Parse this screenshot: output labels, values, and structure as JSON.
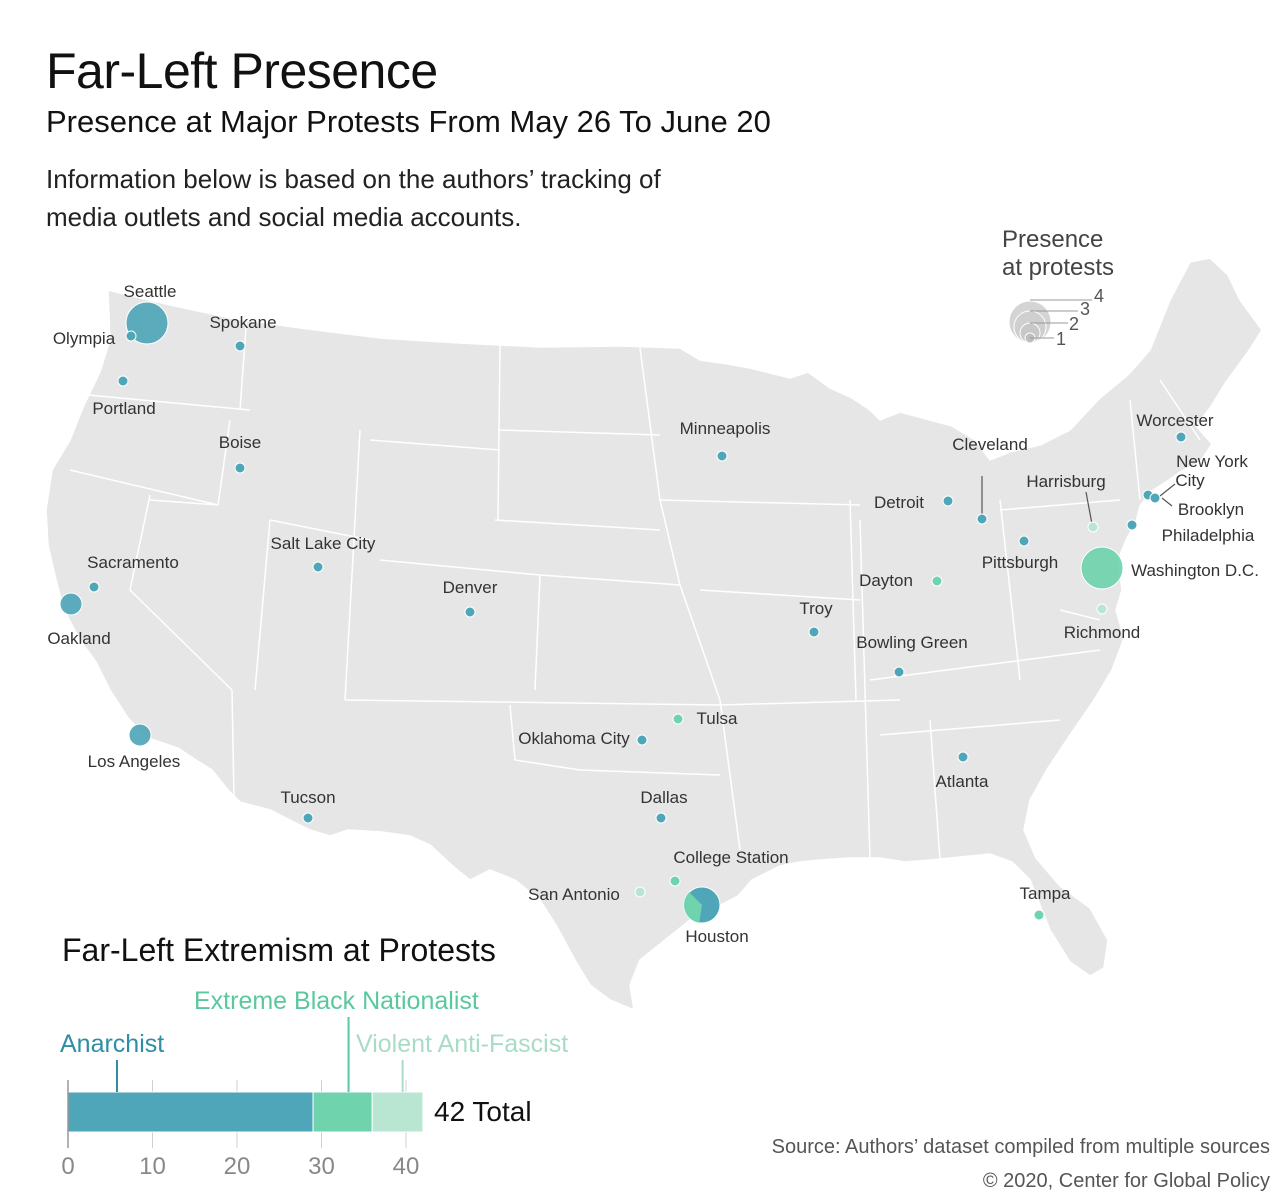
{
  "header": {
    "title": "Far-Left Presence",
    "subtitle": "Presence at Major Protests From May 26 To June 20",
    "intro_line1": "Information below is based on the authors’ tracking of",
    "intro_line2": "media outlets and social media accounts."
  },
  "legend": {
    "title_line1": "Presence",
    "title_line2": "at protests",
    "sizes": [
      "1",
      "2",
      "3",
      "4"
    ]
  },
  "colors": {
    "anarchist": "#4fa6b8",
    "black_nationalist": "#6fd3ad",
    "anti_fascist": "#b8e6d2",
    "land": "#e6e6e6",
    "border": "#ffffff"
  },
  "cities": [
    {
      "name": "Seattle",
      "type": "anarchist",
      "count": 4
    },
    {
      "name": "Olympia",
      "type": "anarchist",
      "count": 1
    },
    {
      "name": "Spokane",
      "type": "anarchist",
      "count": 1
    },
    {
      "name": "Portland",
      "type": "anarchist",
      "count": 1
    },
    {
      "name": "Boise",
      "type": "anarchist",
      "count": 1
    },
    {
      "name": "Sacramento",
      "type": "anarchist",
      "count": 1
    },
    {
      "name": "Oakland",
      "type": "anarchist",
      "count": 2
    },
    {
      "name": "Los Angeles",
      "type": "anarchist",
      "count": 2
    },
    {
      "name": "Salt Lake City",
      "type": "anarchist",
      "count": 1
    },
    {
      "name": "Denver",
      "type": "anarchist",
      "count": 1
    },
    {
      "name": "Tucson",
      "type": "anarchist",
      "count": 1
    },
    {
      "name": "Minneapolis",
      "type": "anarchist",
      "count": 1
    },
    {
      "name": "Oklahoma City",
      "type": "anarchist",
      "count": 1
    },
    {
      "name": "Tulsa",
      "type": "black_nationalist",
      "count": 1
    },
    {
      "name": "Dallas",
      "type": "anarchist",
      "count": 1
    },
    {
      "name": "College Station",
      "type": "black_nationalist",
      "count": 1
    },
    {
      "name": "San Antonio",
      "type": "anti_fascist",
      "count": 1
    },
    {
      "name": "Houston",
      "type": "mixed",
      "count": 3
    },
    {
      "name": "Troy",
      "type": "anarchist",
      "count": 1
    },
    {
      "name": "Bowling Green",
      "type": "anarchist",
      "count": 1
    },
    {
      "name": "Dayton",
      "type": "black_nationalist",
      "count": 1
    },
    {
      "name": "Detroit",
      "type": "anarchist",
      "count": 1
    },
    {
      "name": "Cleveland",
      "type": "anarchist",
      "count": 1
    },
    {
      "name": "Pittsburgh",
      "type": "anarchist",
      "count": 1
    },
    {
      "name": "Harrisburg",
      "type": "anti_fascist",
      "count": 1
    },
    {
      "name": "Washington D.C.",
      "type": "black_nationalist",
      "count": 4
    },
    {
      "name": "Richmond",
      "type": "anti_fascist",
      "count": 1
    },
    {
      "name": "Philadelphia",
      "type": "anarchist",
      "count": 1
    },
    {
      "name": "New York City",
      "type": "anarchist",
      "count": 1
    },
    {
      "name": "Brooklyn",
      "type": "anarchist",
      "count": 1
    },
    {
      "name": "Worcester",
      "type": "anarchist",
      "count": 1
    },
    {
      "name": "Atlanta",
      "type": "anarchist",
      "count": 1
    },
    {
      "name": "Tampa",
      "type": "black_nationalist",
      "count": 1
    }
  ],
  "chart_data": {
    "type": "bar",
    "title": "Far-Left Extremism at Protests",
    "orientation": "horizontal-stacked",
    "series": [
      {
        "name": "Anarchist",
        "values": [
          29
        ]
      },
      {
        "name": "Extreme Black Nationalist",
        "values": [
          7
        ]
      },
      {
        "name": "Violent Anti-Fascist",
        "values": [
          6
        ]
      }
    ],
    "xlim": [
      0,
      42
    ],
    "ticks": [
      "0",
      "10",
      "20",
      "30",
      "40"
    ],
    "total_label": "42 Total"
  },
  "footer": {
    "source": "Source: Authors’ dataset compiled from multiple sources",
    "copyright": "© 2020, Center for Global Policy"
  }
}
